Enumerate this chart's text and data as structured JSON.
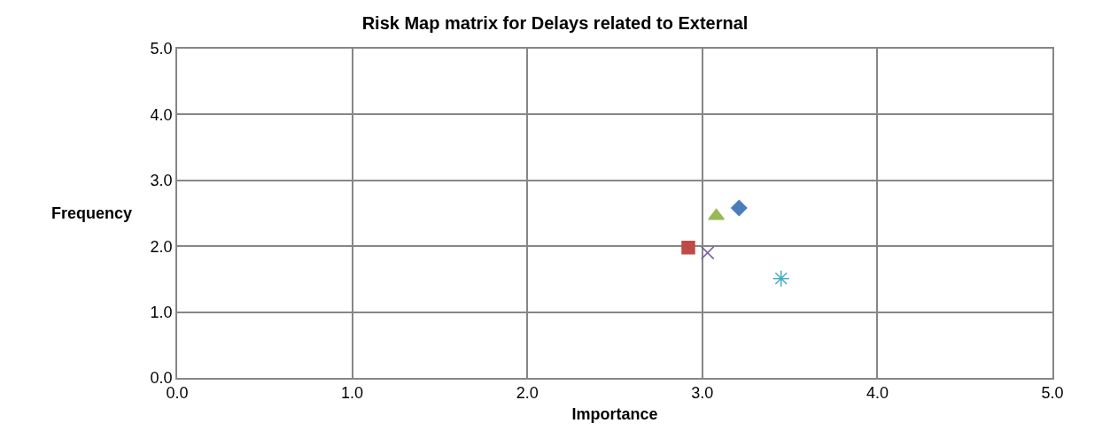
{
  "chart_data": {
    "type": "scatter",
    "title": "Risk Map matrix for Delays related to External",
    "xlabel": "Importance",
    "ylabel": "Frequency",
    "xlim": [
      0,
      5
    ],
    "ylim": [
      0,
      5
    ],
    "xticks": [
      {
        "value": 0,
        "label": "0.0"
      },
      {
        "value": 1,
        "label": "1.0"
      },
      {
        "value": 2,
        "label": "2.0"
      },
      {
        "value": 3,
        "label": "3.0"
      },
      {
        "value": 4,
        "label": "4.0"
      },
      {
        "value": 5,
        "label": "5.0"
      }
    ],
    "yticks": [
      {
        "value": 0,
        "label": "0.0"
      },
      {
        "value": 1,
        "label": "1.0"
      },
      {
        "value": 2,
        "label": "2.0"
      },
      {
        "value": 3,
        "label": "3.0"
      },
      {
        "value": 4,
        "label": "4.0"
      },
      {
        "value": 5,
        "label": "5.0"
      }
    ],
    "grid": true,
    "series": [
      {
        "color": "#4a7ebb",
        "marker": "diamond",
        "x": [
          3.21
        ],
        "values": [
          2.58
        ]
      },
      {
        "color": "#be4b48",
        "marker": "square",
        "x": [
          2.92
        ],
        "values": [
          1.98
        ]
      },
      {
        "color": "#98b954",
        "marker": "triangle",
        "x": [
          3.08
        ],
        "values": [
          2.46
        ]
      },
      {
        "color": "#7d60a0",
        "marker": "cross",
        "x": [
          3.03
        ],
        "values": [
          1.9
        ]
      },
      {
        "color": "#46aac5",
        "x": [
          3.45
        ],
        "values": [
          1.51
        ]
      }
    ]
  }
}
